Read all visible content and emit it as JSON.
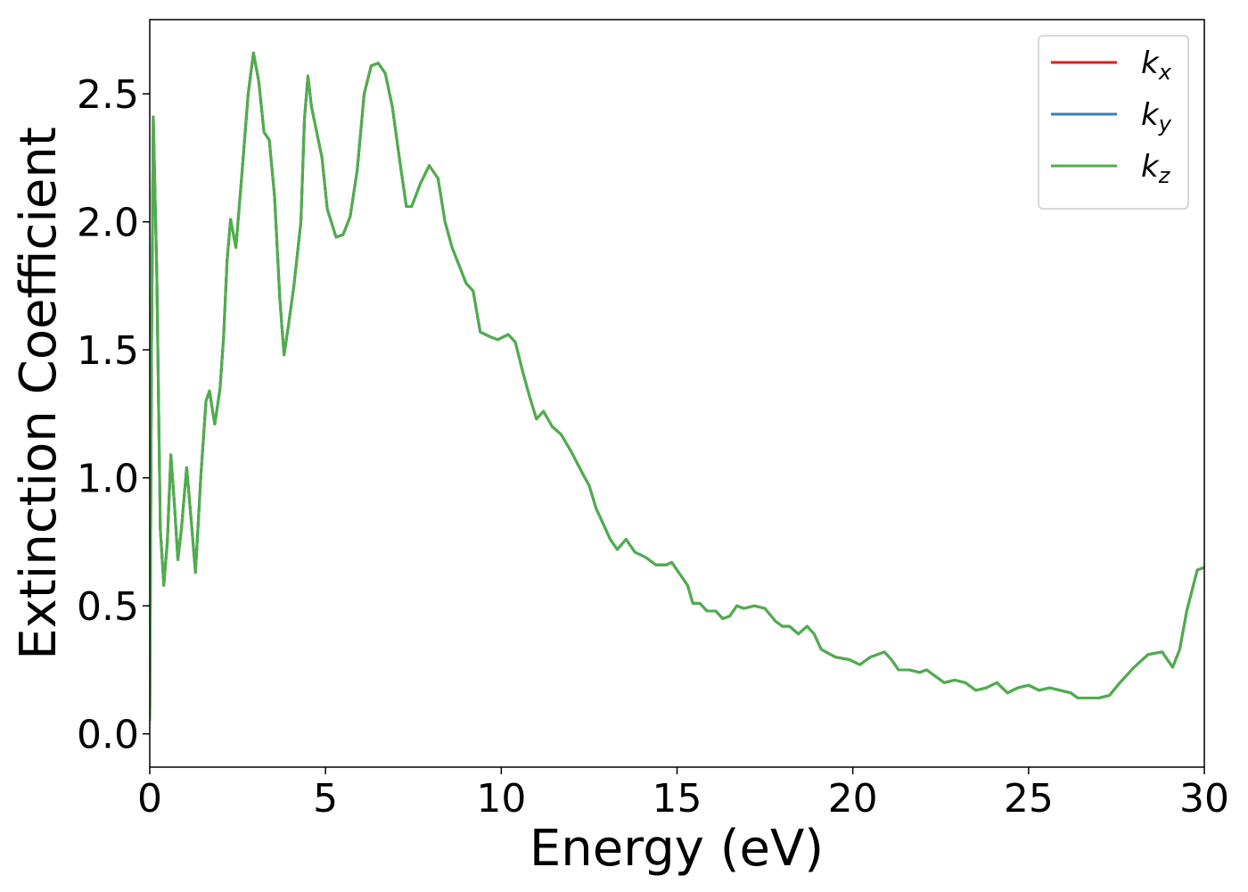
{
  "chart_data": {
    "type": "line",
    "xlabel": "Energy (eV)",
    "ylabel": "Extinction Coefficient",
    "x": [
      0,
      0.05,
      0.1,
      0.2,
      0.3,
      0.4,
      0.5,
      0.6,
      0.7,
      0.8,
      0.9,
      1.05,
      1.2,
      1.3,
      1.45,
      1.6,
      1.7,
      1.8,
      1.85,
      2.0,
      2.1,
      2.2,
      2.3,
      2.45,
      2.6,
      2.8,
      2.95,
      3.1,
      3.25,
      3.4,
      3.55,
      3.7,
      3.82,
      3.95,
      4.1,
      4.3,
      4.4,
      4.5,
      4.6,
      4.75,
      4.9,
      5.05,
      5.3,
      5.5,
      5.7,
      5.9,
      6.1,
      6.3,
      6.5,
      6.7,
      6.9,
      7.1,
      7.3,
      7.45,
      7.7,
      7.95,
      8.2,
      8.4,
      8.6,
      8.8,
      9.0,
      9.2,
      9.4,
      9.7,
      9.9,
      10.2,
      10.4,
      10.6,
      10.8,
      11.0,
      11.2,
      11.45,
      11.7,
      12.0,
      12.3,
      12.5,
      12.7,
      12.9,
      13.1,
      13.3,
      13.55,
      13.8,
      14.1,
      14.4,
      14.7,
      14.85,
      15.1,
      15.3,
      15.45,
      15.65,
      15.85,
      16.1,
      16.3,
      16.5,
      16.7,
      16.9,
      17.2,
      17.5,
      17.8,
      18.0,
      18.2,
      18.45,
      18.7,
      18.9,
      19.1,
      19.5,
      19.9,
      20.2,
      20.5,
      20.9,
      21.1,
      21.3,
      21.6,
      21.9,
      22.1,
      22.4,
      22.6,
      22.9,
      23.2,
      23.5,
      23.8,
      24.1,
      24.4,
      24.7,
      25.0,
      25.3,
      25.6,
      25.9,
      26.2,
      26.4,
      26.8,
      27.0,
      27.3,
      27.6,
      28.0,
      28.4,
      28.8,
      29.1,
      29.3,
      29.5,
      29.8,
      30.0
    ],
    "series": [
      {
        "name": "kx",
        "color": "#e41a1c",
        "values": [
          0.05,
          1.5,
          2.41,
          1.8,
          0.8,
          0.58,
          0.75,
          1.09,
          0.9,
          0.68,
          0.8,
          1.04,
          0.8,
          0.63,
          1.0,
          1.3,
          1.34,
          1.25,
          1.21,
          1.35,
          1.55,
          1.85,
          2.01,
          1.9,
          2.15,
          2.5,
          2.66,
          2.55,
          2.35,
          2.32,
          2.1,
          1.7,
          1.48,
          1.6,
          1.75,
          2.0,
          2.4,
          2.57,
          2.45,
          2.35,
          2.25,
          2.05,
          1.94,
          1.95,
          2.02,
          2.2,
          2.5,
          2.61,
          2.62,
          2.58,
          2.45,
          2.25,
          2.06,
          2.06,
          2.15,
          2.22,
          2.17,
          2.0,
          1.9,
          1.83,
          1.76,
          1.73,
          1.57,
          1.55,
          1.54,
          1.56,
          1.53,
          1.42,
          1.32,
          1.23,
          1.26,
          1.2,
          1.17,
          1.1,
          1.02,
          0.97,
          0.88,
          0.82,
          0.76,
          0.72,
          0.76,
          0.71,
          0.69,
          0.66,
          0.66,
          0.67,
          0.62,
          0.58,
          0.51,
          0.51,
          0.48,
          0.48,
          0.45,
          0.46,
          0.5,
          0.49,
          0.5,
          0.49,
          0.44,
          0.42,
          0.42,
          0.39,
          0.42,
          0.39,
          0.33,
          0.3,
          0.29,
          0.27,
          0.3,
          0.32,
          0.29,
          0.25,
          0.25,
          0.24,
          0.25,
          0.22,
          0.2,
          0.21,
          0.2,
          0.17,
          0.18,
          0.2,
          0.16,
          0.18,
          0.19,
          0.17,
          0.18,
          0.17,
          0.16,
          0.14,
          0.14,
          0.14,
          0.15,
          0.2,
          0.26,
          0.31,
          0.32,
          0.26,
          0.33,
          0.48,
          0.64,
          0.65
        ]
      },
      {
        "name": "ky",
        "color": "#377eb8",
        "values": [
          0.05,
          1.5,
          2.41,
          1.8,
          0.8,
          0.58,
          0.75,
          1.09,
          0.9,
          0.68,
          0.8,
          1.04,
          0.8,
          0.63,
          1.0,
          1.3,
          1.34,
          1.25,
          1.21,
          1.35,
          1.55,
          1.85,
          2.01,
          1.9,
          2.15,
          2.5,
          2.66,
          2.55,
          2.35,
          2.32,
          2.1,
          1.7,
          1.48,
          1.6,
          1.75,
          2.0,
          2.4,
          2.57,
          2.45,
          2.35,
          2.25,
          2.05,
          1.94,
          1.95,
          2.02,
          2.2,
          2.5,
          2.61,
          2.62,
          2.58,
          2.45,
          2.25,
          2.06,
          2.06,
          2.15,
          2.22,
          2.17,
          2.0,
          1.9,
          1.83,
          1.76,
          1.73,
          1.57,
          1.55,
          1.54,
          1.56,
          1.53,
          1.42,
          1.32,
          1.23,
          1.26,
          1.2,
          1.17,
          1.1,
          1.02,
          0.97,
          0.88,
          0.82,
          0.76,
          0.72,
          0.76,
          0.71,
          0.69,
          0.66,
          0.66,
          0.67,
          0.62,
          0.58,
          0.51,
          0.51,
          0.48,
          0.48,
          0.45,
          0.46,
          0.5,
          0.49,
          0.5,
          0.49,
          0.44,
          0.42,
          0.42,
          0.39,
          0.42,
          0.39,
          0.33,
          0.3,
          0.29,
          0.27,
          0.3,
          0.32,
          0.29,
          0.25,
          0.25,
          0.24,
          0.25,
          0.22,
          0.2,
          0.21,
          0.2,
          0.17,
          0.18,
          0.2,
          0.16,
          0.18,
          0.19,
          0.17,
          0.18,
          0.17,
          0.16,
          0.14,
          0.14,
          0.14,
          0.15,
          0.2,
          0.26,
          0.31,
          0.32,
          0.26,
          0.33,
          0.48,
          0.64,
          0.65
        ]
      },
      {
        "name": "kz",
        "color": "#4daf4a",
        "values": [
          0.05,
          1.5,
          2.41,
          1.8,
          0.8,
          0.58,
          0.75,
          1.09,
          0.9,
          0.68,
          0.8,
          1.04,
          0.8,
          0.63,
          1.0,
          1.3,
          1.34,
          1.25,
          1.21,
          1.35,
          1.55,
          1.85,
          2.01,
          1.9,
          2.15,
          2.5,
          2.66,
          2.55,
          2.35,
          2.32,
          2.1,
          1.7,
          1.48,
          1.6,
          1.75,
          2.0,
          2.4,
          2.57,
          2.45,
          2.35,
          2.25,
          2.05,
          1.94,
          1.95,
          2.02,
          2.2,
          2.5,
          2.61,
          2.62,
          2.58,
          2.45,
          2.25,
          2.06,
          2.06,
          2.15,
          2.22,
          2.17,
          2.0,
          1.9,
          1.83,
          1.76,
          1.73,
          1.57,
          1.55,
          1.54,
          1.56,
          1.53,
          1.42,
          1.32,
          1.23,
          1.26,
          1.2,
          1.17,
          1.1,
          1.02,
          0.97,
          0.88,
          0.82,
          0.76,
          0.72,
          0.76,
          0.71,
          0.69,
          0.66,
          0.66,
          0.67,
          0.62,
          0.58,
          0.51,
          0.51,
          0.48,
          0.48,
          0.45,
          0.46,
          0.5,
          0.49,
          0.5,
          0.49,
          0.44,
          0.42,
          0.42,
          0.39,
          0.42,
          0.39,
          0.33,
          0.3,
          0.29,
          0.27,
          0.3,
          0.32,
          0.29,
          0.25,
          0.25,
          0.24,
          0.25,
          0.22,
          0.2,
          0.21,
          0.2,
          0.17,
          0.18,
          0.2,
          0.16,
          0.18,
          0.19,
          0.17,
          0.18,
          0.17,
          0.16,
          0.14,
          0.14,
          0.14,
          0.15,
          0.2,
          0.26,
          0.31,
          0.32,
          0.26,
          0.33,
          0.48,
          0.64,
          0.65
        ]
      }
    ],
    "xlim": [
      0,
      30
    ],
    "xticks": [
      0,
      5,
      10,
      15,
      20,
      25,
      30
    ],
    "ylim": [
      -0.13,
      2.79
    ],
    "yticks": [
      {
        "value": 0,
        "label": "0.0"
      },
      0.5,
      {
        "value": 1,
        "label": "1.0"
      },
      1.5,
      {
        "value": 2,
        "label": "2.0"
      },
      2.5
    ],
    "grid": false,
    "legend": "upper right"
  }
}
